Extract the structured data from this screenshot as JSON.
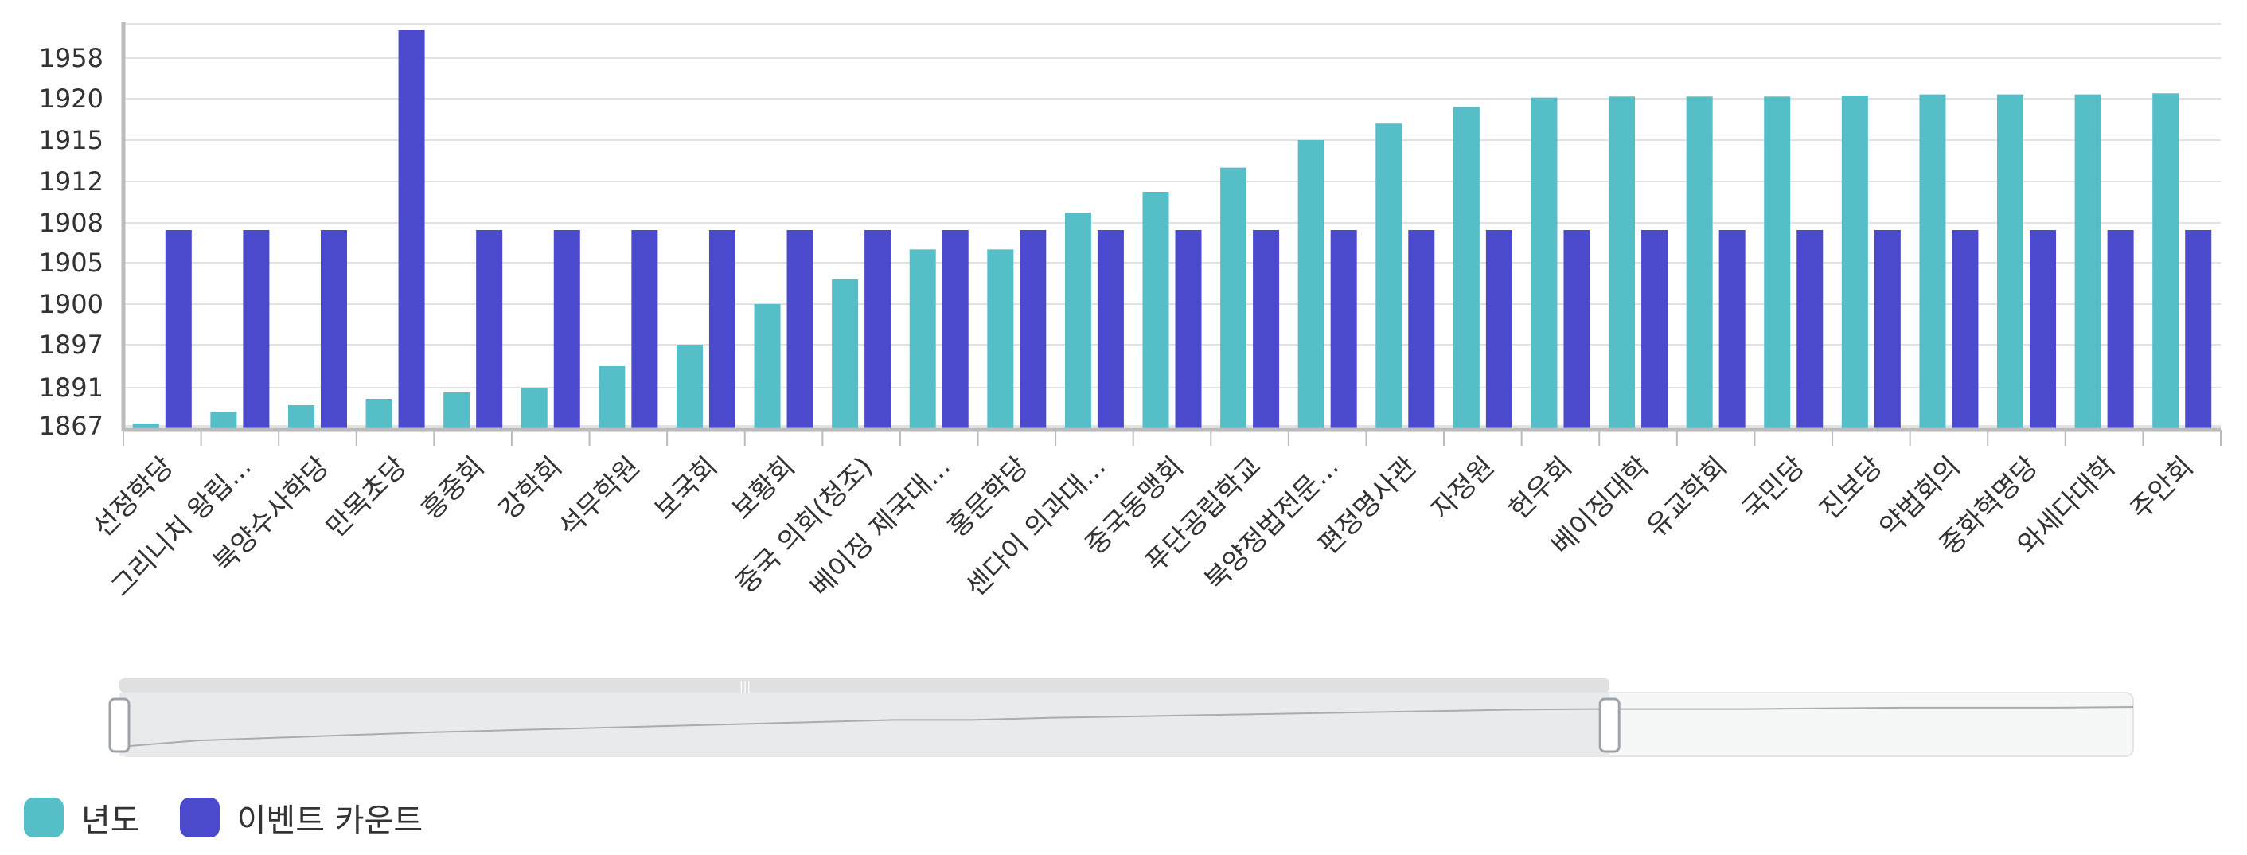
{
  "chart_data": {
    "type": "bar",
    "categories": [
      "선정학당",
      "그리니치 왕립...",
      "북양수사학당",
      "만목초당",
      "흥중회",
      "강학회",
      "석무학원",
      "보국회",
      "보황회",
      "중국 의회(청조)",
      "베이징 제국대...",
      "홍문학당",
      "센다이 의과대...",
      "중국동맹회",
      "푸단공립학교",
      "북양정법전문...",
      "편정명사관",
      "자정원",
      "헌우회",
      "베이징대학",
      "유교학회",
      "국민당",
      "진보당",
      "약법회의",
      "중화혁명당",
      "와세다대학",
      "주안회"
    ],
    "y_tick_labels": [
      "1867",
      "1891",
      "1897",
      "1900",
      "1905",
      "1908",
      "1912",
      "1915",
      "1920",
      "1958"
    ],
    "series": [
      {
        "name": "년도",
        "color": "#56bec7",
        "values": [
          1867,
          1876,
          1880,
          1884,
          1888,
          1891,
          1894,
          1897,
          1900,
          1903,
          1906,
          1906,
          1909,
          1911,
          1913,
          1915,
          1917,
          1919,
          1921,
          1922,
          1922,
          1922,
          1923,
          1924,
          1924,
          1924,
          1925
        ]
      },
      {
        "name": "이벤트 카운트",
        "color": "#4b49cc",
        "values": [
          1,
          1,
          1,
          2,
          1,
          1,
          1,
          1,
          1,
          1,
          1,
          1,
          1,
          1,
          1,
          1,
          1,
          1,
          1,
          1,
          1,
          1,
          1,
          1,
          1,
          1,
          1
        ]
      }
    ],
    "legend_position": "bottom-left",
    "grid": true,
    "data_zoom": {
      "start_fraction": 0.0,
      "end_fraction": 0.74
    }
  },
  "legend": {
    "items": [
      {
        "label": "년도",
        "color": "#56bec7"
      },
      {
        "label": "이벤트 카운트",
        "color": "#4b49cc"
      }
    ]
  }
}
